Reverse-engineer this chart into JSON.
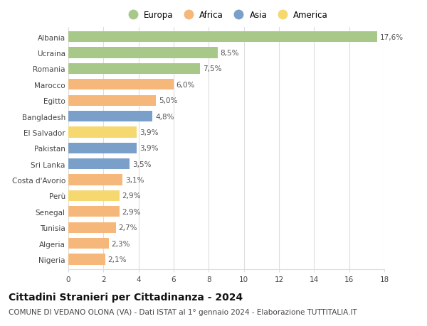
{
  "countries": [
    "Albania",
    "Ucraina",
    "Romania",
    "Marocco",
    "Egitto",
    "Bangladesh",
    "El Salvador",
    "Pakistan",
    "Sri Lanka",
    "Costa d'Avorio",
    "Perù",
    "Senegal",
    "Tunisia",
    "Algeria",
    "Nigeria"
  ],
  "values": [
    17.6,
    8.5,
    7.5,
    6.0,
    5.0,
    4.8,
    3.9,
    3.9,
    3.5,
    3.1,
    2.9,
    2.9,
    2.7,
    2.3,
    2.1
  ],
  "labels": [
    "17,6%",
    "8,5%",
    "7,5%",
    "6,0%",
    "5,0%",
    "4,8%",
    "3,9%",
    "3,9%",
    "3,5%",
    "3,1%",
    "2,9%",
    "2,9%",
    "2,7%",
    "2,3%",
    "2,1%"
  ],
  "continents": [
    "Europa",
    "Europa",
    "Europa",
    "Africa",
    "Africa",
    "Asia",
    "America",
    "Asia",
    "Asia",
    "Africa",
    "America",
    "Africa",
    "Africa",
    "Africa",
    "Africa"
  ],
  "colors": {
    "Europa": "#a8c88a",
    "Africa": "#f5b87a",
    "Asia": "#7a9fc8",
    "America": "#f5d870"
  },
  "legend_order": [
    "Europa",
    "Africa",
    "Asia",
    "America"
  ],
  "title": "Cittadini Stranieri per Cittadinanza - 2024",
  "subtitle": "COMUNE DI VEDANO OLONA (VA) - Dati ISTAT al 1° gennaio 2024 - Elaborazione TUTTITALIA.IT",
  "xlim": [
    0,
    18
  ],
  "xticks": [
    0,
    2,
    4,
    6,
    8,
    10,
    12,
    14,
    16,
    18
  ],
  "background_color": "#ffffff",
  "grid_color": "#dddddd",
  "bar_height": 0.68,
  "title_fontsize": 10,
  "subtitle_fontsize": 7.5,
  "label_fontsize": 7.5,
  "tick_fontsize": 7.5,
  "legend_fontsize": 8.5
}
